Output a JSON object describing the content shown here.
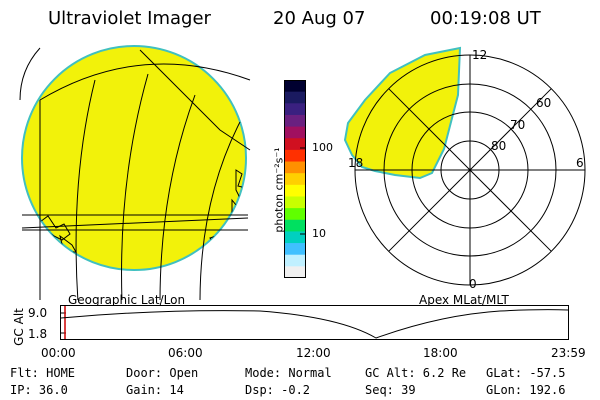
{
  "header": {
    "instrument": "Ultraviolet Imager",
    "date": "20 Aug 07",
    "time": "00:19:08 UT"
  },
  "geo_panel": {
    "label": "Geographic Lat/Lon"
  },
  "apex_panel": {
    "label": "Apex MLat/MLT",
    "mlt_labels": [
      "12",
      "18",
      "6",
      "0"
    ],
    "mlat_labels": [
      "60",
      "70",
      "80"
    ]
  },
  "colorbar": {
    "unit_label": "photon cm⁻²s⁻¹",
    "ticks": [
      "100",
      "10"
    ],
    "colors": [
      "#000030",
      "#1a1a60",
      "#3a2080",
      "#6a2080",
      "#a01060",
      "#d01020",
      "#ff3000",
      "#ff9000",
      "#ffd000",
      "#ffff00",
      "#c8ff00",
      "#60ff00",
      "#00e060",
      "#00d0c0",
      "#40c0ff",
      "#c0f0ff",
      "#f0f0f0"
    ]
  },
  "altitude_plot": {
    "axis_label": "GC Alt",
    "y_ticks": [
      "9.0",
      "1.8"
    ],
    "x_ticks": [
      "00:00",
      "06:00",
      "12:00",
      "18:00",
      "23:59"
    ]
  },
  "status": {
    "flt": "Flt: HOME",
    "ip": "IP: 36.0",
    "door": "Door: Open",
    "gain": "Gain: 14",
    "mode": "Mode: Normal",
    "dsp": "Dsp:   -0.2",
    "gcalt": "GC Alt: 6.2 Re",
    "seq": "Seq: 39",
    "glat": "GLat: -57.5",
    "glon": "GLon: 192.6"
  },
  "colors": {
    "disk_fill": "#f2f20a",
    "disk_edge": "#40c0c0"
  }
}
